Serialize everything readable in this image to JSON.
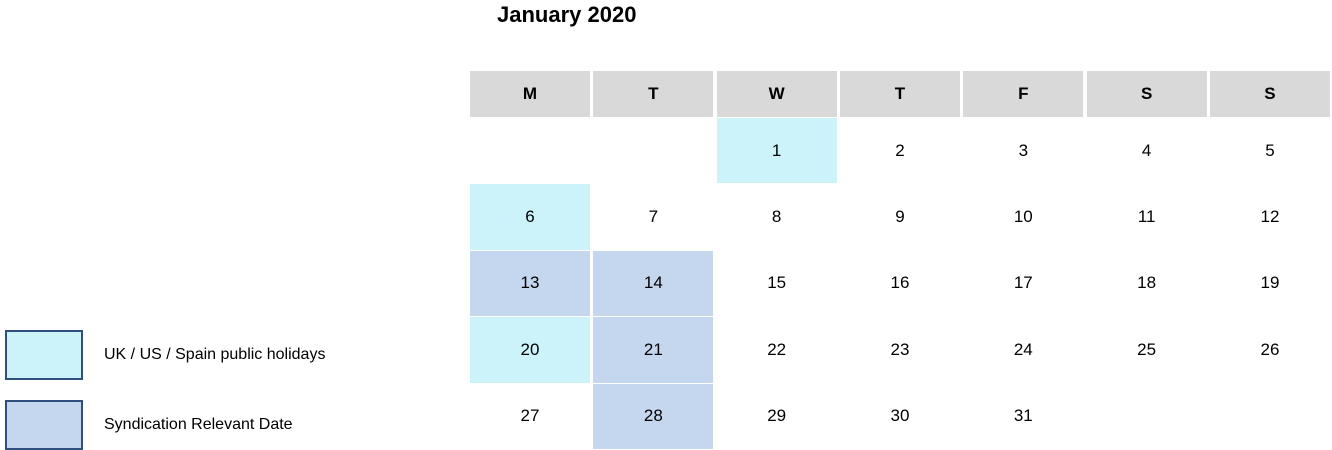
{
  "title": "January 2020",
  "weekdays": [
    "M",
    "T",
    "W",
    "T",
    "F",
    "S",
    "S"
  ],
  "header_color": "#d9d9d9",
  "legend": [
    {
      "label": "UK / US / Spain public holidays",
      "color": "#ccf2fa"
    },
    {
      "label": "Syndication Relevant Date",
      "color": "#c5d6ef"
    }
  ],
  "weeks": [
    [
      null,
      null,
      {
        "day": 1,
        "color": "#ccf2fa"
      },
      {
        "day": 2
      },
      {
        "day": 3
      },
      {
        "day": 4
      },
      {
        "day": 5
      }
    ],
    [
      {
        "day": 6,
        "color": "#ccf2fa"
      },
      {
        "day": 7
      },
      {
        "day": 8
      },
      {
        "day": 9
      },
      {
        "day": 10
      },
      {
        "day": 11
      },
      {
        "day": 12
      }
    ],
    [
      {
        "day": 13,
        "color": "#c5d6ef"
      },
      {
        "day": 14,
        "color": "#c5d6ef"
      },
      {
        "day": 15
      },
      {
        "day": 16
      },
      {
        "day": 17
      },
      {
        "day": 18
      },
      {
        "day": 19
      }
    ],
    [
      {
        "day": 20,
        "color": "#ccf2fa"
      },
      {
        "day": 21,
        "color": "#c5d6ef"
      },
      {
        "day": 22
      },
      {
        "day": 23
      },
      {
        "day": 24
      },
      {
        "day": 25
      },
      {
        "day": 26
      }
    ],
    [
      {
        "day": 27
      },
      {
        "day": 28,
        "color": "#c5d6ef"
      },
      {
        "day": 29
      },
      {
        "day": 30
      },
      {
        "day": 31
      },
      null,
      null
    ]
  ]
}
